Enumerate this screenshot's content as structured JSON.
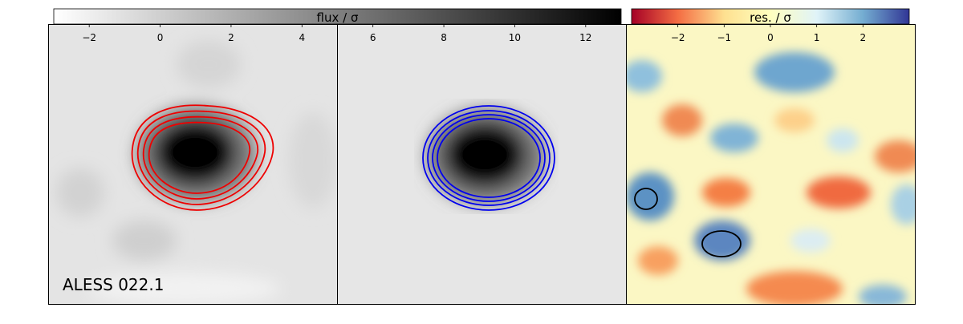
{
  "chart_data": {
    "type": "image",
    "label": "ALESS 022.1",
    "colorbars": [
      {
        "label": "flux / σ",
        "lim": [
          -3,
          13
        ],
        "colors": [
          "#ffffff",
          "#000000"
        ],
        "ticks": [
          {
            "value": -2,
            "label": "−2"
          },
          0,
          2,
          4,
          6,
          8,
          10,
          12
        ]
      },
      {
        "label": "res. / σ",
        "lim": [
          -3,
          3
        ],
        "colors": [
          "#a50026",
          "#f46d43",
          "#fee090",
          "#ffffbf",
          "#e0f3f8",
          "#74add1",
          "#313695"
        ],
        "ticks": [
          {
            "value": -2,
            "label": "−2"
          },
          {
            "value": -1,
            "label": "−1"
          },
          0,
          1,
          2
        ]
      }
    ]
  }
}
